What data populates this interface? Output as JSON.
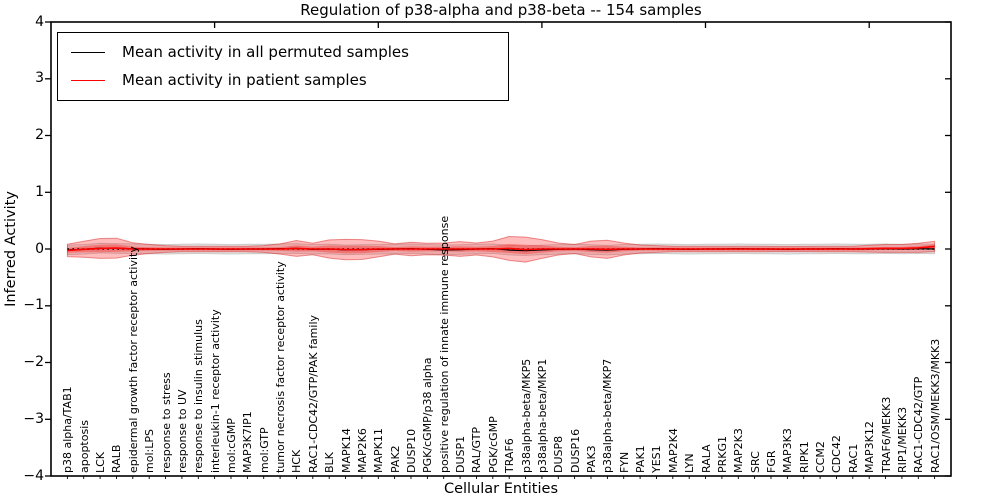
{
  "chart_data": {
    "type": "line",
    "title": "Regulation of p38-alpha and p38-beta -- 154 samples",
    "xlabel": "Cellular Entities",
    "ylabel": "Inferred Activity",
    "ylim": [
      -4,
      4
    ],
    "xlim": [
      0,
      55
    ],
    "yticks": [
      4,
      3,
      2,
      1,
      0,
      -1,
      -2,
      -3,
      -4
    ],
    "ytick_labels": [
      "4",
      "3",
      "2",
      "1",
      "0",
      "−1",
      "−2",
      "−3",
      "−4"
    ],
    "xticks_unlabeled": [
      10,
      20,
      30,
      40,
      50
    ],
    "grid": false,
    "legend": {
      "position": "upper left",
      "entries": [
        {
          "label": "Mean activity in all permuted samples",
          "color": "#000000"
        },
        {
          "label": "Mean activity in patient samples",
          "color": "#ff0000"
        }
      ]
    },
    "zero_line": {
      "y": 0,
      "style": "dotted",
      "color": "#000000"
    },
    "colors": {
      "permuted_line": "#000000",
      "patient_line": "#ff0000",
      "patient_band_fill": "rgba(255,0,0,0.26)",
      "patient_band_inner_fill": "rgba(255,0,0,0.30)",
      "patient_band_edge": "rgba(215,40,40,0.5)",
      "permuted_band_fill": "rgba(0,0,0,0.11)",
      "permuted_band_edge": "rgba(0,0,0,0.18)"
    },
    "categories": [
      "p38 alpha/TAB1",
      "apoptosis",
      "LCK",
      "RALB",
      "epidermal growth factor receptor activity",
      "mol:LPS",
      "response to stress",
      "response to UV",
      "response to insulin stimulus",
      "interleukin-1 receptor activity",
      "mol:cGMP",
      "MAP3K7IP1",
      "mol:GTP",
      "tumor necrosis factor receptor activity",
      "HCK",
      "RAC1-CDC42/GTP/PAK family",
      "BLK",
      "MAPK14",
      "MAP2K6",
      "MAPK11",
      "PAK2",
      "DUSP10",
      "PGK/cGMP/p38 alpha",
      "positive regulation of innate immune response",
      "DUSP1",
      "RAL/GTP",
      "PGK/cGMP",
      "TRAF6",
      "p38alpha-beta/MKP5",
      "p38alpha-beta/MKP1",
      "DUSP8",
      "DUSP16",
      "PAK3",
      "p38alpha-beta/MKP7",
      "FYN",
      "PAK1",
      "YES1",
      "MAP2K4",
      "LYN",
      "RALA",
      "PRKG1",
      "MAP2K3",
      "SRC",
      "FGR",
      "MAP3K3",
      "RIPK1",
      "CCM2",
      "CDC42",
      "RAC1",
      "MAP3K12",
      "TRAF6/MEKK3",
      "RIP1/MEKK3",
      "RAC1-CDC42/GTP",
      "RAC1/OSM/MEKK3/MKK3"
    ],
    "series": [
      {
        "name": "Mean activity in all permuted samples",
        "color": "#000000",
        "values": [
          -0.015,
          -0.005,
          0.015,
          0.01,
          0.005,
          0,
          -0.005,
          0,
          0.005,
          0,
          -0.005,
          0,
          0,
          0.005,
          0.01,
          -0.005,
          0,
          -0.015,
          -0.01,
          -0.005,
          0,
          0.005,
          -0.005,
          -0.015,
          -0.01,
          0,
          0.005,
          -0.02,
          -0.03,
          -0.015,
          -0.005,
          0,
          -0.01,
          -0.02,
          -0.005,
          0,
          0.005,
          0,
          -0.005,
          0,
          0,
          0.005,
          0,
          0,
          -0.005,
          0,
          0,
          0.005,
          0,
          0,
          0.005,
          0,
          0.005,
          0
        ]
      },
      {
        "name": "Mean activity in patient samples",
        "color": "#ff0000",
        "values": [
          -0.025,
          -0.005,
          0.01,
          0.015,
          0,
          0,
          0,
          0,
          0,
          0,
          0,
          0,
          0,
          0,
          0.01,
          0,
          0,
          -0.01,
          -0.01,
          0,
          0,
          0,
          0,
          0,
          0,
          0,
          0,
          0.01,
          -0.01,
          0,
          0,
          0,
          0,
          -0.005,
          0,
          0,
          0,
          0,
          0,
          0,
          0,
          0,
          0,
          0,
          0,
          0,
          0,
          0,
          0,
          0.005,
          0.01,
          0.01,
          0.02,
          0.045
        ]
      }
    ],
    "bands": [
      {
        "name": "permuted-envelope",
        "center_series": 0,
        "halfwidth_constant": 0.085
      },
      {
        "name": "patient-envelope",
        "center_series": 1,
        "halfwidth": [
          0.11,
          0.14,
          0.175,
          0.175,
          0.11,
          0.08,
          0.06,
          0.05,
          0.05,
          0.05,
          0.05,
          0.05,
          0.06,
          0.09,
          0.14,
          0.1,
          0.16,
          0.18,
          0.175,
          0.14,
          0.09,
          0.12,
          0.1,
          0.105,
          0.13,
          0.105,
          0.14,
          0.21,
          0.22,
          0.165,
          0.105,
          0.08,
          0.14,
          0.16,
          0.105,
          0.07,
          0.06,
          0.05,
          0.05,
          0.05,
          0.05,
          0.05,
          0.05,
          0.045,
          0.045,
          0.045,
          0.05,
          0.05,
          0.05,
          0.06,
          0.07,
          0.07,
          0.08,
          0.09
        ]
      }
    ]
  }
}
